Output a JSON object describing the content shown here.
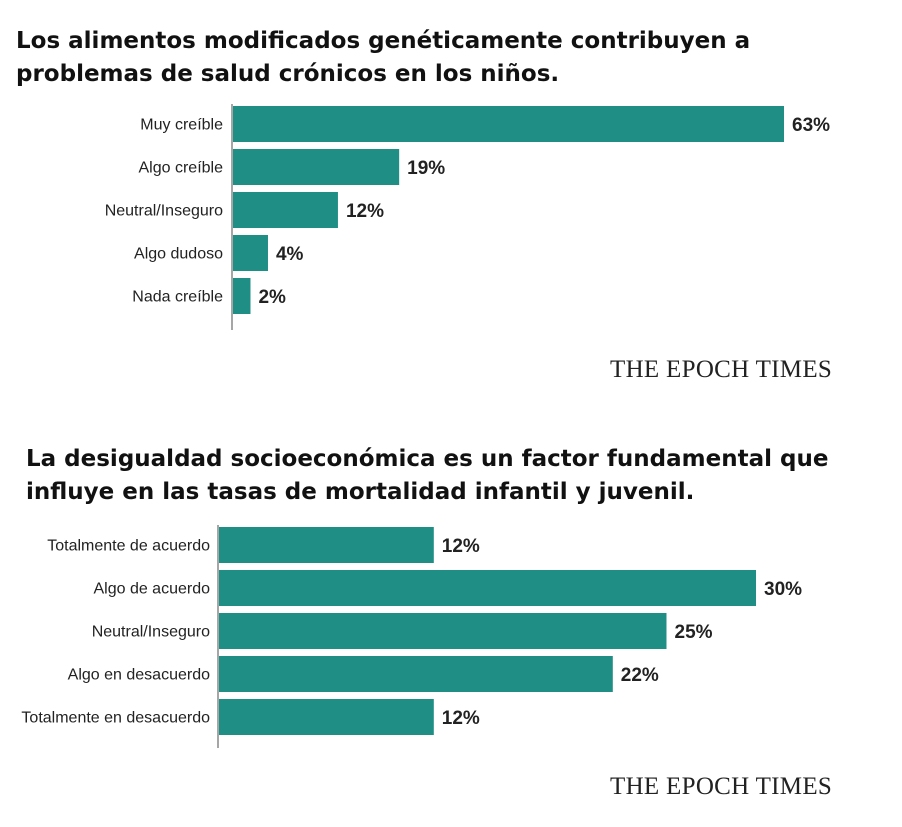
{
  "chart_data": [
    {
      "type": "bar",
      "orientation": "horizontal",
      "title": "Los alimentos modificados genéticamente contribuyen a problemas de salud crónicos en los niños.",
      "categories": [
        "Muy creíble",
        "Algo creíble",
        "Neutral/Inseguro",
        "Algo dudoso",
        "Nada creíble"
      ],
      "values": [
        63,
        19,
        12,
        4,
        2
      ],
      "value_labels": [
        "63%",
        "19%",
        "12%",
        "4%",
        "2%"
      ],
      "unit": "%",
      "color": "#1f8f86",
      "grid": false
    },
    {
      "type": "bar",
      "orientation": "horizontal",
      "title": "La desigualdad socioeconómica es un factor fundamental que influye en las tasas de mortalidad infantil y juvenil.",
      "categories": [
        "Totalmente de acuerdo",
        "Algo de acuerdo",
        "Neutral/Inseguro",
        "Algo en desacuerdo",
        "Totalmente en desacuerdo"
      ],
      "values": [
        12,
        30,
        25,
        22,
        12
      ],
      "value_labels": [
        "12%",
        "30%",
        "25%",
        "22%",
        "12%"
      ],
      "unit": "%",
      "color": "#1f8f86",
      "grid": false
    }
  ],
  "branding": {
    "chart1": "THE EPOCH TIMES",
    "chart2": "THE EPOCH TIMES"
  }
}
